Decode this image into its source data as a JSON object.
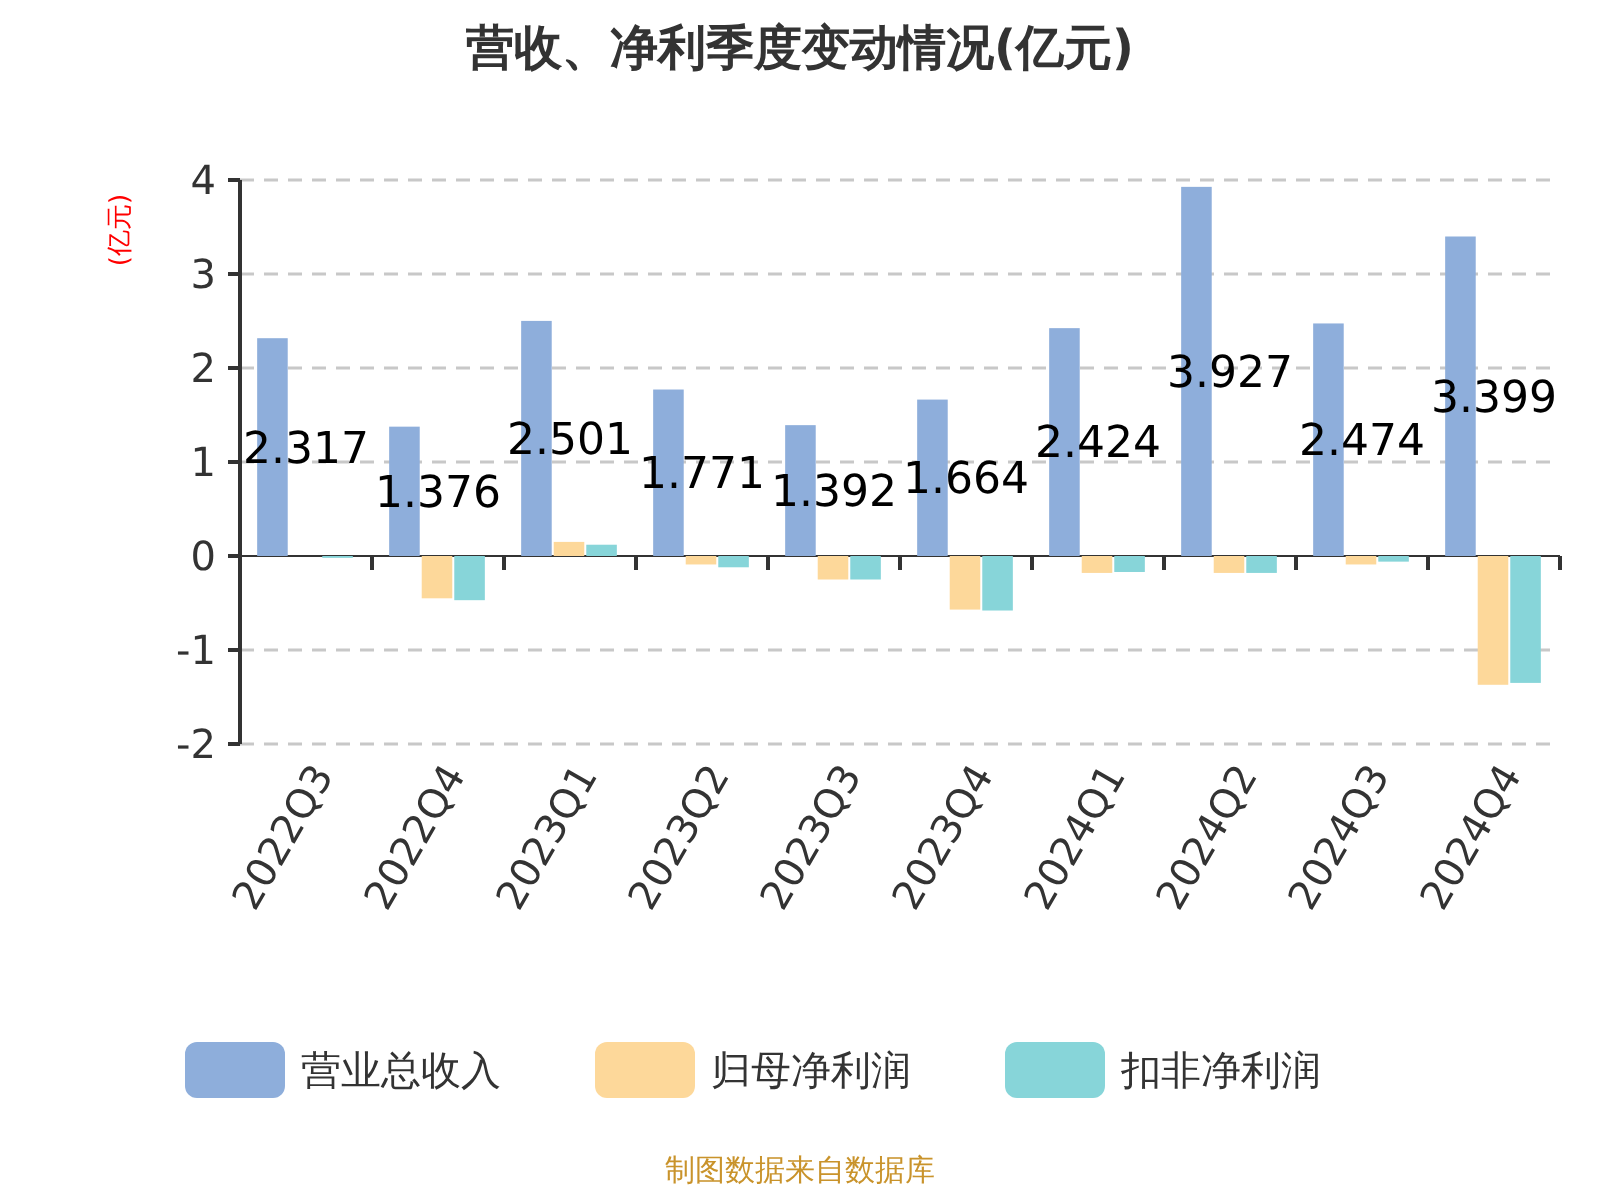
{
  "chart_data": {
    "type": "bar",
    "title": "营收、净利季度变动情况(亿元)",
    "ylabel": "(亿元)",
    "categories": [
      "2022Q3",
      "2022Q4",
      "2023Q1",
      "2023Q2",
      "2023Q3",
      "2023Q4",
      "2024Q1",
      "2024Q2",
      "2024Q3",
      "2024Q4"
    ],
    "series": [
      {
        "name": "营业总收入",
        "color": "#8eaedb",
        "values": [
          2.317,
          1.376,
          2.501,
          1.771,
          1.392,
          1.664,
          2.424,
          3.927,
          2.474,
          3.399
        ],
        "value_labels": [
          "2.317",
          "1.376",
          "2.501",
          "1.771",
          "1.392",
          "1.664",
          "2.424",
          "3.927",
          "2.474",
          "3.399"
        ]
      },
      {
        "name": "归母净利润",
        "color": "#fdd89a",
        "values": [
          null,
          -0.45,
          0.15,
          -0.09,
          -0.25,
          -0.57,
          -0.18,
          -0.18,
          -0.09,
          -1.37
        ]
      },
      {
        "name": "扣非净利润",
        "color": "#87d5d9",
        "values": [
          -0.02,
          -0.47,
          0.12,
          -0.12,
          -0.25,
          -0.58,
          -0.17,
          -0.18,
          -0.06,
          -1.35
        ]
      }
    ],
    "ylim": [
      -2,
      4
    ],
    "yticks": [
      -2,
      -1,
      0,
      1,
      2,
      3,
      4
    ],
    "grid": "y",
    "legend": "bottom",
    "annotations": [
      "制图数据来自数据库"
    ]
  }
}
